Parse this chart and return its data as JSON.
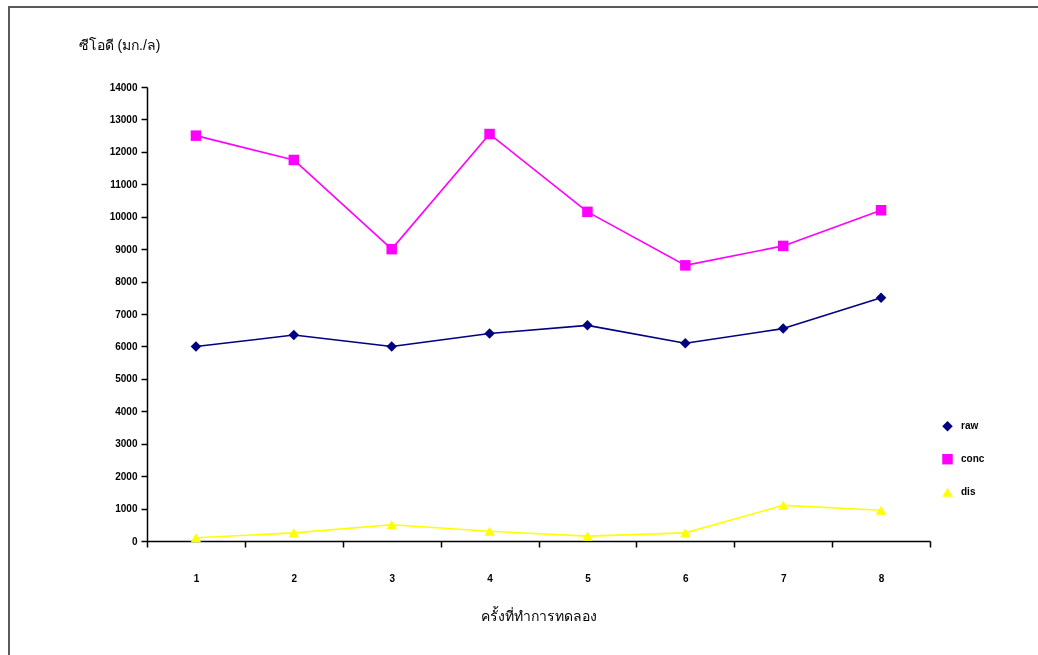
{
  "chart_data": {
    "type": "line",
    "xlabel": "ครั้งที่ทำการทดลอง",
    "ylabel": "ซีโอดี (มก./ล)",
    "categories": [
      "1",
      "2",
      "3",
      "4",
      "5",
      "6",
      "7",
      "8"
    ],
    "series": [
      {
        "name": "raw",
        "color": "#000080",
        "marker": "diamond",
        "values": [
          6000,
          6350,
          6000,
          6400,
          6650,
          6100,
          6550,
          7500
        ]
      },
      {
        "name": "conc",
        "color": "#ff00ff",
        "marker": "square",
        "values": [
          12500,
          11750,
          9000,
          12550,
          10150,
          8500,
          9100,
          10200
        ]
      },
      {
        "name": "dis",
        "color": "#ffff00",
        "marker": "triangle",
        "values": [
          100,
          250,
          500,
          300,
          150,
          250,
          1100,
          950
        ]
      }
    ],
    "ylim": [
      0,
      14000
    ],
    "yticks": [
      0,
      1000,
      2000,
      3000,
      4000,
      5000,
      6000,
      7000,
      8000,
      9000,
      10000,
      11000,
      12000,
      13000,
      14000
    ],
    "legend": "right"
  }
}
